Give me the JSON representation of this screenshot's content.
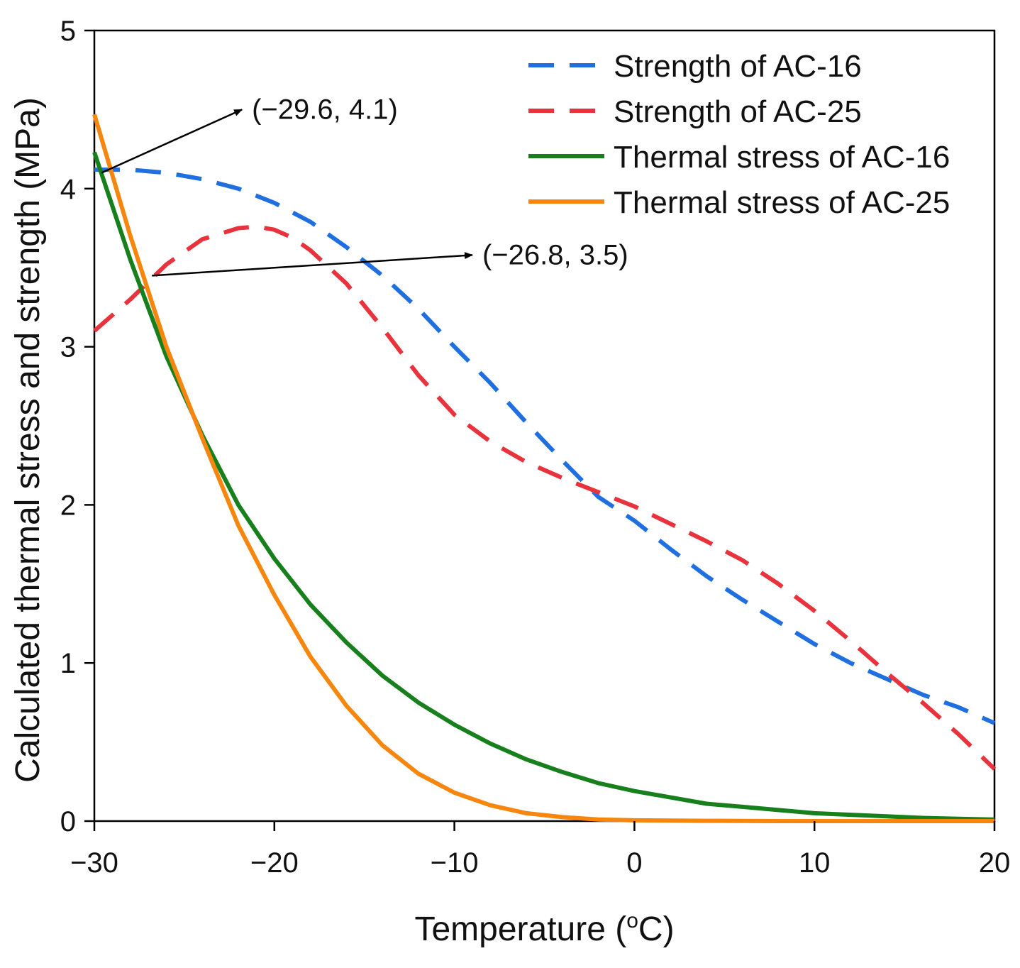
{
  "chart_data": {
    "type": "line",
    "xlabel_main": "Temperature (",
    "xlabel_sup": "o",
    "xlabel_end": "C)",
    "ylabel": "Calculated thermal stress and strength (MPa)",
    "xlim": [
      -30,
      20
    ],
    "ylim": [
      0,
      5
    ],
    "x_ticks": [
      -30,
      -20,
      -10,
      0,
      10,
      20
    ],
    "x_tick_labels": [
      "−30",
      "−20",
      "−10",
      "0",
      "10",
      "20"
    ],
    "y_ticks": [
      0,
      1,
      2,
      3,
      4,
      5
    ],
    "y_tick_labels": [
      "0",
      "1",
      "2",
      "3",
      "4",
      "5"
    ],
    "grid": false,
    "legend_position": "top-right",
    "series": [
      {
        "name": "Strength of AC-16",
        "color": "#1f6fe0",
        "dash": true,
        "x": [
          -30,
          -28,
          -26,
          -24,
          -22,
          -20,
          -18,
          -16,
          -14,
          -12,
          -10,
          -8,
          -6,
          -4,
          -2,
          0,
          2,
          4,
          6,
          8,
          10,
          12,
          14,
          16,
          18,
          20
        ],
        "y": [
          4.12,
          4.12,
          4.1,
          4.06,
          4.0,
          3.91,
          3.79,
          3.63,
          3.45,
          3.24,
          3.0,
          2.77,
          2.52,
          2.28,
          2.05,
          1.9,
          1.72,
          1.55,
          1.4,
          1.26,
          1.12,
          1.0,
          0.9,
          0.8,
          0.72,
          0.62
        ]
      },
      {
        "name": "Strength of AC-25",
        "color": "#e8323c",
        "dash": true,
        "x": [
          -30,
          -28,
          -26,
          -24,
          -22,
          -21,
          -20,
          -19,
          -18,
          -16,
          -14,
          -12,
          -10,
          -8,
          -6,
          -4,
          -2,
          0,
          2,
          4,
          6,
          8,
          10,
          12,
          14,
          16,
          18,
          20
        ],
        "y": [
          3.1,
          3.3,
          3.52,
          3.68,
          3.75,
          3.76,
          3.74,
          3.69,
          3.61,
          3.4,
          3.12,
          2.82,
          2.57,
          2.4,
          2.27,
          2.17,
          2.08,
          1.99,
          1.88,
          1.77,
          1.65,
          1.5,
          1.33,
          1.14,
          0.94,
          0.75,
          0.55,
          0.33
        ]
      },
      {
        "name": "Thermal stress of AC-16",
        "color": "#17801c",
        "dash": false,
        "x": [
          -30,
          -28,
          -26,
          -24,
          -22,
          -20,
          -18,
          -16,
          -14,
          -12,
          -10,
          -8,
          -6,
          -4,
          -2,
          0,
          2,
          4,
          6,
          8,
          10,
          12,
          14,
          16,
          18,
          20
        ],
        "y": [
          4.23,
          3.55,
          2.94,
          2.44,
          2.0,
          1.66,
          1.37,
          1.13,
          0.92,
          0.75,
          0.61,
          0.49,
          0.39,
          0.31,
          0.24,
          0.19,
          0.15,
          0.11,
          0.09,
          0.07,
          0.05,
          0.04,
          0.03,
          0.02,
          0.015,
          0.01
        ]
      },
      {
        "name": "Thermal stress of AC-25",
        "color": "#f7860f",
        "dash": false,
        "x": [
          -30,
          -28,
          -26,
          -24,
          -22,
          -20,
          -18,
          -16,
          -14,
          -12,
          -10,
          -8,
          -6,
          -4,
          -2,
          0,
          2,
          4,
          6,
          8,
          10,
          12,
          14,
          16,
          18,
          20
        ],
        "y": [
          4.47,
          3.7,
          3.0,
          2.42,
          1.87,
          1.43,
          1.04,
          0.73,
          0.48,
          0.3,
          0.18,
          0.1,
          0.05,
          0.025,
          0.01,
          0.005,
          0.003,
          0.002,
          0.001,
          0.0,
          0.0,
          0.0,
          0.0,
          0.0,
          0.0,
          0.0
        ]
      }
    ],
    "annotations": [
      {
        "text": "(−29.6, 4.1)",
        "point": [
          -29.6,
          4.1
        ],
        "label_at": [
          -21.8,
          4.5
        ]
      },
      {
        "text": "(−26.8, 3.5)",
        "point": [
          -26.8,
          3.45
        ],
        "label_at": [
          -9.0,
          3.58
        ]
      }
    ]
  }
}
